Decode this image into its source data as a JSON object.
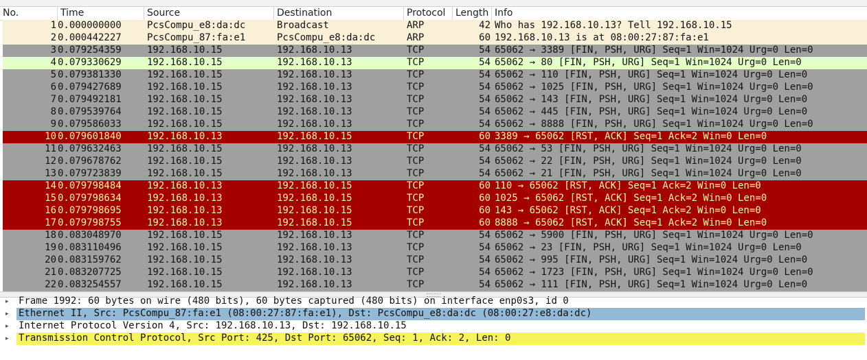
{
  "columns": [
    "No.",
    "Time",
    "Source",
    "Destination",
    "Protocol",
    "Length",
    "Info"
  ],
  "colors": {
    "arp": "#faf0d7",
    "tcp_fin": "#a0a0a0",
    "tcp_http": "#e4ffc7",
    "tcp_rst": "#a40000",
    "rst_text": "#fffc9c",
    "detail_selected": "#92bad7",
    "detail_highlight": "#f7f35d"
  },
  "packets": [
    {
      "no": "1",
      "time": "0.000000000",
      "src": "PcsCompu_e8:da:dc",
      "dst": "Broadcast",
      "proto": "ARP",
      "len": "42",
      "info": "Who has 192.168.10.13? Tell 192.168.10.15",
      "style": "arp"
    },
    {
      "no": "2",
      "time": "0.000442227",
      "src": "PcsCompu_87:fa:e1",
      "dst": "PcsCompu_e8:da:dc",
      "proto": "ARP",
      "len": "60",
      "info": "192.168.10.13 is at 08:00:27:87:fa:e1",
      "style": "arp"
    },
    {
      "no": "3",
      "time": "0.079254359",
      "src": "192.168.10.15",
      "dst": "192.168.10.13",
      "proto": "TCP",
      "len": "54",
      "info": "65062 → 3389 [FIN, PSH, URG] Seq=1 Win=1024 Urg=0 Len=0",
      "style": "fin"
    },
    {
      "no": "4",
      "time": "0.079330629",
      "src": "192.168.10.15",
      "dst": "192.168.10.13",
      "proto": "TCP",
      "len": "54",
      "info": "65062 → 80 [FIN, PSH, URG] Seq=1 Win=1024 Urg=0 Len=0",
      "style": "http"
    },
    {
      "no": "5",
      "time": "0.079381330",
      "src": "192.168.10.15",
      "dst": "192.168.10.13",
      "proto": "TCP",
      "len": "54",
      "info": "65062 → 110 [FIN, PSH, URG] Seq=1 Win=1024 Urg=0 Len=0",
      "style": "fin"
    },
    {
      "no": "6",
      "time": "0.079427689",
      "src": "192.168.10.15",
      "dst": "192.168.10.13",
      "proto": "TCP",
      "len": "54",
      "info": "65062 → 1025 [FIN, PSH, URG] Seq=1 Win=1024 Urg=0 Len=0",
      "style": "fin"
    },
    {
      "no": "7",
      "time": "0.079492181",
      "src": "192.168.10.15",
      "dst": "192.168.10.13",
      "proto": "TCP",
      "len": "54",
      "info": "65062 → 143 [FIN, PSH, URG] Seq=1 Win=1024 Urg=0 Len=0",
      "style": "fin"
    },
    {
      "no": "8",
      "time": "0.079539764",
      "src": "192.168.10.15",
      "dst": "192.168.10.13",
      "proto": "TCP",
      "len": "54",
      "info": "65062 → 445 [FIN, PSH, URG] Seq=1 Win=1024 Urg=0 Len=0",
      "style": "fin"
    },
    {
      "no": "9",
      "time": "0.079586033",
      "src": "192.168.10.15",
      "dst": "192.168.10.13",
      "proto": "TCP",
      "len": "54",
      "info": "65062 → 8888 [FIN, PSH, URG] Seq=1 Win=1024 Urg=0 Len=0",
      "style": "fin"
    },
    {
      "no": "10",
      "time": "0.079601840",
      "src": "192.168.10.13",
      "dst": "192.168.10.15",
      "proto": "TCP",
      "len": "60",
      "info": "3389 → 65062 [RST, ACK] Seq=1 Ack=2 Win=0 Len=0",
      "style": "rst"
    },
    {
      "no": "11",
      "time": "0.079632463",
      "src": "192.168.10.15",
      "dst": "192.168.10.13",
      "proto": "TCP",
      "len": "54",
      "info": "65062 → 53 [FIN, PSH, URG] Seq=1 Win=1024 Urg=0 Len=0",
      "style": "fin"
    },
    {
      "no": "12",
      "time": "0.079678762",
      "src": "192.168.10.15",
      "dst": "192.168.10.13",
      "proto": "TCP",
      "len": "54",
      "info": "65062 → 22 [FIN, PSH, URG] Seq=1 Win=1024 Urg=0 Len=0",
      "style": "fin"
    },
    {
      "no": "13",
      "time": "0.079723839",
      "src": "192.168.10.15",
      "dst": "192.168.10.13",
      "proto": "TCP",
      "len": "54",
      "info": "65062 → 21 [FIN, PSH, URG] Seq=1 Win=1024 Urg=0 Len=0",
      "style": "fin"
    },
    {
      "no": "14",
      "time": "0.079798484",
      "src": "192.168.10.13",
      "dst": "192.168.10.15",
      "proto": "TCP",
      "len": "60",
      "info": "110 → 65062 [RST, ACK] Seq=1 Ack=2 Win=0 Len=0",
      "style": "rst"
    },
    {
      "no": "15",
      "time": "0.079798634",
      "src": "192.168.10.13",
      "dst": "192.168.10.15",
      "proto": "TCP",
      "len": "60",
      "info": "1025 → 65062 [RST, ACK] Seq=1 Ack=2 Win=0 Len=0",
      "style": "rst"
    },
    {
      "no": "16",
      "time": "0.079798695",
      "src": "192.168.10.13",
      "dst": "192.168.10.15",
      "proto": "TCP",
      "len": "60",
      "info": "143 → 65062 [RST, ACK] Seq=1 Ack=2 Win=0 Len=0",
      "style": "rst"
    },
    {
      "no": "17",
      "time": "0.079798755",
      "src": "192.168.10.13",
      "dst": "192.168.10.15",
      "proto": "TCP",
      "len": "60",
      "info": "8888 → 65062 [RST, ACK] Seq=1 Ack=2 Win=0 Len=0",
      "style": "rst"
    },
    {
      "no": "18",
      "time": "0.083048970",
      "src": "192.168.10.15",
      "dst": "192.168.10.13",
      "proto": "TCP",
      "len": "54",
      "info": "65062 → 5900 [FIN, PSH, URG] Seq=1 Win=1024 Urg=0 Len=0",
      "style": "fin"
    },
    {
      "no": "19",
      "time": "0.083110496",
      "src": "192.168.10.15",
      "dst": "192.168.10.13",
      "proto": "TCP",
      "len": "54",
      "info": "65062 → 23 [FIN, PSH, URG] Seq=1 Win=1024 Urg=0 Len=0",
      "style": "fin"
    },
    {
      "no": "20",
      "time": "0.083159762",
      "src": "192.168.10.15",
      "dst": "192.168.10.13",
      "proto": "TCP",
      "len": "54",
      "info": "65062 → 995 [FIN, PSH, URG] Seq=1 Win=1024 Urg=0 Len=0",
      "style": "fin"
    },
    {
      "no": "21",
      "time": "0.083207725",
      "src": "192.168.10.15",
      "dst": "192.168.10.13",
      "proto": "TCP",
      "len": "54",
      "info": "65062 → 1723 [FIN, PSH, URG] Seq=1 Win=1024 Urg=0 Len=0",
      "style": "fin"
    },
    {
      "no": "22",
      "time": "0.083254557",
      "src": "192.168.10.15",
      "dst": "192.168.10.13",
      "proto": "TCP",
      "len": "54",
      "info": "65062 → 111 [FIN, PSH, URG] Seq=1 Win=1024 Urg=0 Len=0",
      "style": "fin"
    }
  ],
  "details": [
    {
      "text": "Frame 1992: 60 bytes on wire (480 bits), 60 bytes captured (480 bits) on interface enp0s3, id 0",
      "style": "plain",
      "arrow": "▸"
    },
    {
      "text": "Ethernet II, Src: PcsCompu_87:fa:e1 (08:00:27:87:fa:e1), Dst: PcsCompu_e8:da:dc (08:00:27:e8:da:dc)",
      "style": "selected",
      "arrow": "▸"
    },
    {
      "text": "Internet Protocol Version 4, Src: 192.168.10.13, Dst: 192.168.10.15",
      "style": "plain",
      "arrow": "▸"
    },
    {
      "text": "Transmission Control Protocol, Src Port: 425, Dst Port: 65062, Seq: 1, Ack: 2, Len: 0",
      "style": "highlight",
      "arrow": "▸"
    }
  ]
}
